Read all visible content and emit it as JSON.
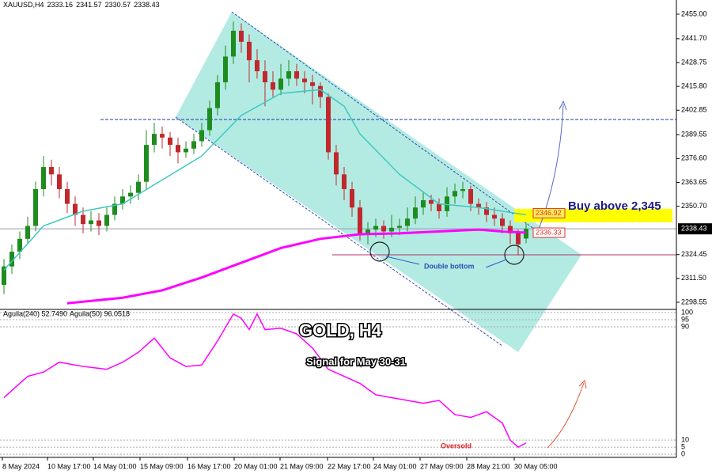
{
  "chart_data": [
    {
      "type": "candlestick",
      "symbol": "XAUUSD,H4",
      "title": "GOLD, H4",
      "subtitle": "Signal for May 30-31",
      "annotations": [
        "Buy above 2,345",
        "Double bottom"
      ],
      "up_color": "#1e8c1e",
      "down_color": "#c0282d",
      "ylim": [
        2295.1,
        2462.7
      ],
      "yticks": [
        {
          "value": 2455,
          "label": "2455.00"
        },
        {
          "value": 2441.7,
          "label": "2441.70"
        },
        {
          "value": 2428.75,
          "label": "2428.75"
        },
        {
          "value": 2415.8,
          "label": "2415.80"
        },
        {
          "value": 2402.85,
          "label": "2402.85"
        },
        {
          "value": 2389.55,
          "label": "2389.55"
        },
        {
          "value": 2376.6,
          "label": "2376.60"
        },
        {
          "value": 2363.65,
          "label": "2363.65"
        },
        {
          "value": 2350.7,
          "label": "2350.70"
        },
        {
          "value": 2324.45,
          "label": "2324.45"
        },
        {
          "value": 2311.5,
          "label": "2311.50"
        },
        {
          "value": 2298.55,
          "label": "2298.55"
        }
      ],
      "xticks": [
        {
          "value": -0.2,
          "label": "8 May 2024"
        },
        {
          "value": 5.5,
          "label": "10 May 17:00"
        },
        {
          "value": 11.3,
          "label": "14 May 01:00"
        },
        {
          "value": 17.2,
          "label": "15 May 09:00"
        },
        {
          "value": 23.2,
          "label": "16 May 17:00"
        },
        {
          "value": 29.1,
          "label": "20 May 01:00"
        },
        {
          "value": 34.9,
          "label": "21 May 09:00"
        },
        {
          "value": 40.9,
          "label": "22 May 17:00"
        },
        {
          "value": 46.7,
          "label": "24 May 01:00"
        },
        {
          "value": 52.6,
          "label": "27 May 09:00"
        },
        {
          "value": 58.5,
          "label": "28 May 21:00"
        },
        {
          "value": 64.5,
          "label": "30 May 05:00"
        }
      ],
      "ohlc": [
        [
          2308,
          2322,
          2303,
          2318
        ],
        [
          2318,
          2330,
          2314,
          2326
        ],
        [
          2326,
          2337,
          2322,
          2333
        ],
        [
          2333,
          2345,
          2330,
          2340
        ],
        [
          2340,
          2364,
          2337,
          2360
        ],
        [
          2360,
          2378,
          2356,
          2372
        ],
        [
          2372,
          2376,
          2362,
          2368
        ],
        [
          2368,
          2372,
          2355,
          2360
        ],
        [
          2360,
          2364,
          2347,
          2352
        ],
        [
          2352,
          2356,
          2340,
          2346
        ],
        [
          2346,
          2350,
          2336,
          2341
        ],
        [
          2341,
          2348,
          2337,
          2343
        ],
        [
          2343,
          2347,
          2335,
          2340
        ],
        [
          2340,
          2350,
          2337,
          2346
        ],
        [
          2346,
          2356,
          2343,
          2352
        ],
        [
          2352,
          2360,
          2349,
          2356
        ],
        [
          2356,
          2362,
          2352,
          2358
        ],
        [
          2358,
          2368,
          2354,
          2364
        ],
        [
          2364,
          2392,
          2360,
          2384
        ],
        [
          2384,
          2396,
          2380,
          2390
        ],
        [
          2390,
          2394,
          2382,
          2388
        ],
        [
          2388,
          2391,
          2378,
          2384
        ],
        [
          2384,
          2388,
          2374,
          2380
        ],
        [
          2380,
          2386,
          2377,
          2382
        ],
        [
          2382,
          2390,
          2379,
          2386
        ],
        [
          2386,
          2396,
          2383,
          2392
        ],
        [
          2392,
          2408,
          2389,
          2404
        ],
        [
          2404,
          2422,
          2400,
          2418
        ],
        [
          2418,
          2438,
          2414,
          2432
        ],
        [
          2432,
          2451,
          2428,
          2446
        ],
        [
          2446,
          2450,
          2434,
          2440
        ],
        [
          2440,
          2444,
          2418,
          2430
        ],
        [
          2430,
          2436,
          2420,
          2424
        ],
        [
          2424,
          2430,
          2405,
          2418
        ],
        [
          2418,
          2424,
          2410,
          2414
        ],
        [
          2414,
          2428,
          2411,
          2420
        ],
        [
          2420,
          2430,
          2416,
          2424
        ],
        [
          2424,
          2428,
          2416,
          2420
        ],
        [
          2420,
          2424,
          2412,
          2418
        ],
        [
          2418,
          2422,
          2406,
          2416
        ],
        [
          2416,
          2418,
          2404,
          2410
        ],
        [
          2410,
          2412,
          2376,
          2380
        ],
        [
          2380,
          2384,
          2362,
          2368
        ],
        [
          2368,
          2372,
          2354,
          2360
        ],
        [
          2360,
          2364,
          2345,
          2350
        ],
        [
          2350,
          2354,
          2332,
          2336
        ],
        [
          2336,
          2342,
          2330,
          2338
        ],
        [
          2338,
          2344,
          2334,
          2340
        ],
        [
          2340,
          2343,
          2333,
          2337
        ],
        [
          2337,
          2346,
          2334,
          2339
        ],
        [
          2339,
          2344,
          2335,
          2340
        ],
        [
          2340,
          2350,
          2337,
          2344
        ],
        [
          2344,
          2356,
          2341,
          2350
        ],
        [
          2350,
          2358,
          2346,
          2354
        ],
        [
          2354,
          2357,
          2348,
          2352
        ],
        [
          2352,
          2355,
          2344,
          2348
        ],
        [
          2348,
          2361,
          2345,
          2356
        ],
        [
          2356,
          2363,
          2352,
          2359
        ],
        [
          2359,
          2364,
          2355,
          2360
        ],
        [
          2360,
          2362,
          2348,
          2352
        ],
        [
          2352,
          2355,
          2346,
          2350
        ],
        [
          2350,
          2353,
          2342,
          2346
        ],
        [
          2346,
          2350,
          2340,
          2344
        ],
        [
          2344,
          2347,
          2336,
          2340
        ],
        [
          2340,
          2343,
          2330,
          2336
        ],
        [
          2336,
          2338,
          2324,
          2330
        ],
        [
          2333.16,
          2341.57,
          2330.57,
          2338.43
        ]
      ],
      "indicators": [
        {
          "color": "#3cc8c0",
          "x": [
            0,
            5,
            10,
            15,
            20,
            25,
            30,
            35,
            40,
            43,
            45,
            50,
            55,
            60,
            63,
            66
          ],
          "values": [
            2316,
            2340,
            2348,
            2352,
            2365,
            2378,
            2400,
            2412,
            2414,
            2405,
            2390,
            2368,
            2352,
            2350,
            2348,
            2346
          ]
        },
        {
          "color": "#ff00ff",
          "x": [
            8,
            15,
            20,
            25,
            30,
            35,
            40,
            45,
            50,
            55,
            60,
            63,
            66
          ],
          "values": [
            2298,
            2301,
            2305,
            2312,
            2320,
            2328,
            2333,
            2335.5,
            2336,
            2337,
            2338,
            2337,
            2336.33
          ]
        }
      ],
      "levels": [
        {
          "value": 2397.8,
          "color": "#2233aa"
        },
        {
          "value": 2324.3,
          "color": "#b0306a"
        }
      ],
      "zone": [
        2342,
        2349.3
      ],
      "zone_color": "#ffff00",
      "price_labels": [
        2346.92,
        2336.33
      ]
    },
    {
      "type": "line",
      "labels": [
        "Aguila(240) 52.7490",
        "Aguila(50) 96.0518"
      ],
      "annotations": [
        "Oversold"
      ],
      "ylim": [
        -2.2,
        101.7
      ],
      "yticks": [
        100,
        95,
        90,
        10,
        5,
        0
      ],
      "series": [
        {
          "color": "#ff00ff",
          "x": [
            0,
            3,
            5,
            7,
            10,
            13,
            15,
            17,
            19,
            21,
            23,
            25,
            27,
            29,
            30,
            31,
            32,
            33,
            35,
            37,
            39,
            41,
            43,
            45,
            47,
            49,
            51,
            53,
            55,
            57,
            59,
            61,
            63,
            64,
            65,
            66
          ],
          "values": [
            40,
            55,
            58,
            65,
            62,
            60,
            65,
            72,
            82,
            68,
            62,
            63,
            80,
            99,
            96,
            88,
            99,
            88,
            89,
            85,
            75,
            60,
            55,
            50,
            42,
            40,
            38,
            36,
            38,
            28,
            26,
            30,
            22,
            10,
            5,
            8
          ]
        }
      ]
    }
  ]
}
